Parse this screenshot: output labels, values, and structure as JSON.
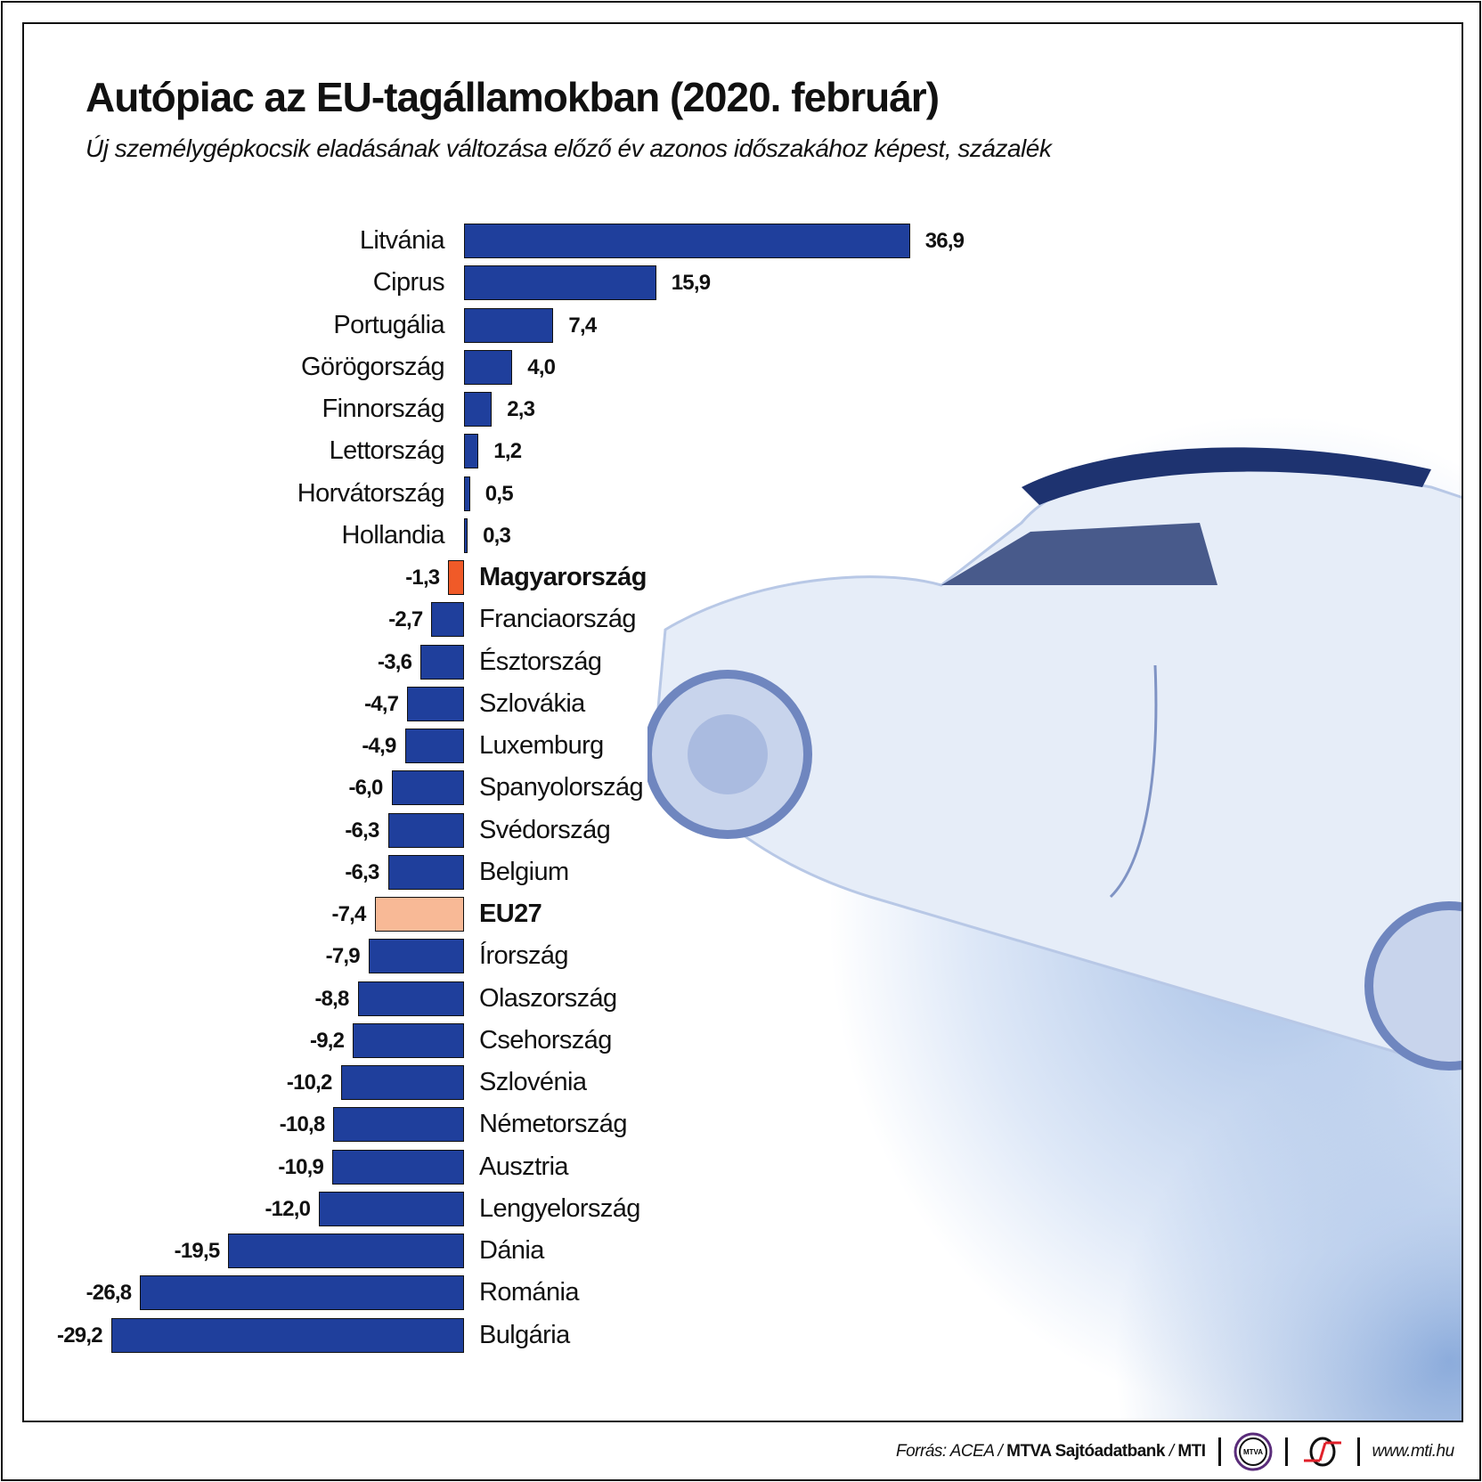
{
  "chart_data": {
    "type": "bar",
    "orientation": "horizontal",
    "title": "Autópiac az EU-tagállamokban (2020. február)",
    "subtitle": "Új személygépkocsik eladásának változása előző év azonos időszakához képest, százalék",
    "categories": [
      "Litvánia",
      "Ciprus",
      "Portugália",
      "Görögország",
      "Finnország",
      "Lettország",
      "Horvátország",
      "Hollandia",
      "Magyarország",
      "Franciaország",
      "Észtország",
      "Szlovákia",
      "Luxemburg",
      "Spanyolország",
      "Svédország",
      "Belgium",
      "EU27",
      "Írország",
      "Olaszország",
      "Csehország",
      "Szlovénia",
      "Németország",
      "Ausztria",
      "Lengyelország",
      "Dánia",
      "Románia",
      "Bulgária"
    ],
    "values": [
      36.9,
      15.9,
      7.4,
      4.0,
      2.3,
      1.2,
      0.5,
      0.3,
      -1.3,
      -2.7,
      -3.6,
      -4.7,
      -4.9,
      -6.0,
      -6.3,
      -6.3,
      -7.4,
      -7.9,
      -8.8,
      -9.2,
      -10.2,
      -10.8,
      -10.9,
      -12.0,
      -19.5,
      -26.8,
      -29.2
    ],
    "value_labels": [
      "36,9",
      "15,9",
      "7,4",
      "4,0",
      "2,3",
      "1,2",
      "0,5",
      "0,3",
      "-1,3",
      "-2,7",
      "-3,6",
      "-4,7",
      "-4,9",
      "-6,0",
      "-6,3",
      "-6,3",
      "-7,4",
      "-7,9",
      "-8,8",
      "-9,2",
      "-10,2",
      "-10,8",
      "-10,9",
      "-12,0",
      "-19,5",
      "-26,8",
      "-29,2"
    ],
    "highlight": {
      "Magyarország": "#f05a28",
      "EU27": "#f8b996"
    },
    "bold_categories": [
      "Magyarország",
      "EU27"
    ],
    "bar_color": "#1f3f9c",
    "xlim": [
      -29.2,
      36.9
    ],
    "grid": false
  },
  "footer": {
    "source_prefix": "Forrás: ACEA / ",
    "source_bold": "MTVA Sajtóadatbank",
    "source_sep": " / ",
    "source_mti": "MTI",
    "logo_mtva": "MTVA",
    "url": "www.mti.hu"
  }
}
